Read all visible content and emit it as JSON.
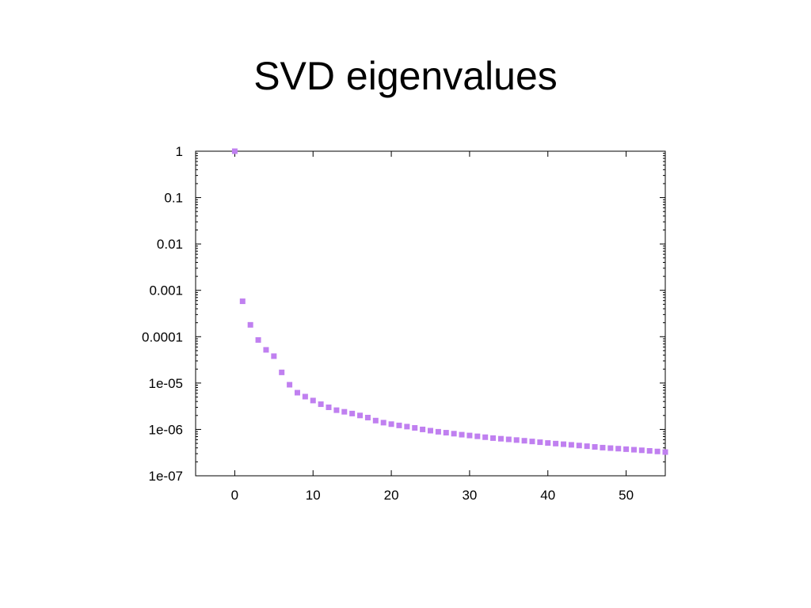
{
  "slide": {
    "title": "SVD eigenvalues"
  },
  "chart_data": {
    "type": "scatter",
    "title": "",
    "xlabel": "",
    "ylabel": "",
    "xlim": [
      -5,
      55
    ],
    "ylim": [
      1e-07,
      1
    ],
    "y_scale": "log",
    "grid": false,
    "legend": "none",
    "x_ticks": [
      0,
      10,
      20,
      30,
      40,
      50
    ],
    "x_tick_labels": [
      "0",
      "10",
      "20",
      "30",
      "40",
      "50"
    ],
    "y_ticks": [
      1,
      0.1,
      0.01,
      0.001,
      0.0001,
      1e-05,
      1e-06,
      1e-07
    ],
    "y_tick_labels": [
      "1",
      "0.1",
      "0.01",
      "0.001",
      "0.0001",
      "1e-05",
      "1e-06",
      "1e-07"
    ],
    "marker_color": "#c080f0",
    "series": [
      {
        "x": [
          0,
          1,
          2,
          3,
          4,
          5,
          6,
          7,
          8,
          9,
          10,
          11,
          12,
          13,
          14,
          15,
          16,
          17,
          18,
          19,
          20,
          21,
          22,
          23,
          24,
          25,
          26,
          27,
          28,
          29,
          30,
          31,
          32,
          33,
          34,
          35,
          36,
          37,
          38,
          39,
          40,
          41,
          42,
          43,
          44,
          45,
          46,
          47,
          48,
          49,
          50,
          51,
          52,
          53,
          54,
          55
        ],
        "y": [
          1,
          0.00058,
          0.00018,
          8.5e-05,
          5.2e-05,
          3.8e-05,
          1.7e-05,
          9.2e-06,
          6.2e-06,
          5.1e-06,
          4.2e-06,
          3.5e-06,
          3e-06,
          2.6e-06,
          2.4e-06,
          2.2e-06,
          2e-06,
          1.8e-06,
          1.55e-06,
          1.4e-06,
          1.3e-06,
          1.22e-06,
          1.15e-06,
          1.08e-06,
          1e-06,
          9.4e-07,
          8.9e-07,
          8.5e-07,
          8.1e-07,
          7.7e-07,
          7.4e-07,
          7.1e-07,
          6.8e-07,
          6.5e-07,
          6.3e-07,
          6.1e-07,
          5.9e-07,
          5.7e-07,
          5.5e-07,
          5.3e-07,
          5.1e-07,
          4.95e-07,
          4.8e-07,
          4.65e-07,
          4.5e-07,
          4.35e-07,
          4.2e-07,
          4.05e-07,
          3.95e-07,
          3.85e-07,
          3.75e-07,
          3.65e-07,
          3.55e-07,
          3.45e-07,
          3.35e-07,
          3.25e-07
        ]
      }
    ]
  }
}
